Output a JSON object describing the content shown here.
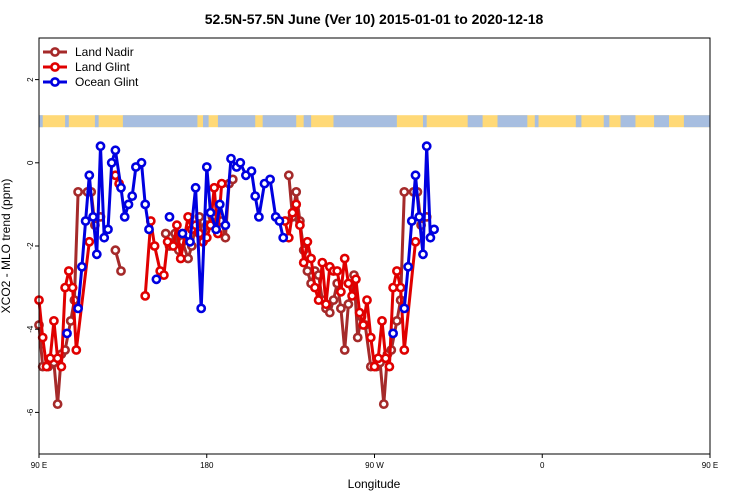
{
  "chart_data": {
    "type": "line",
    "title": "52.5N-57.5N June (Ver 10)   2015-01-01 to 2020-12-18",
    "xlabel": "Longitude",
    "ylabel": "XCO2 - MLO trend (ppm)",
    "xlim": [
      90,
      450
    ],
    "ylim": [
      -7,
      3
    ],
    "x_ticks": [
      {
        "value": 90,
        "label": "90 E"
      },
      {
        "value": 180,
        "label": "180"
      },
      {
        "value": 270,
        "label": "90 W"
      },
      {
        "value": 360,
        "label": "0"
      },
      {
        "value": 450,
        "label": "90 E"
      },
      {
        "value": 540,
        "label": "180"
      }
    ],
    "y_ticks": [
      -6,
      -4,
      -2,
      0,
      2
    ],
    "legend_position": "top-left",
    "land_strip": {
      "y_center": 1.0,
      "land_color": "#FFD977",
      "ocean_color": "#A7BEE0"
    },
    "series": [
      {
        "name": "Land Nadir",
        "color": "#A52A2A",
        "segments": [
          [
            [
              90,
              -3.9
            ],
            [
              92,
              -4.9
            ],
            [
              95,
              -4.9
            ],
            [
              98,
              -4.8
            ],
            [
              100,
              -5.8
            ],
            [
              102,
              -4.6
            ],
            [
              104,
              -4.5
            ],
            [
              107,
              -3.8
            ],
            [
              109,
              -3.3
            ],
            [
              111,
              -0.7
            ],
            [
              116,
              -0.7
            ],
            [
              118,
              -0.7
            ],
            [
              120,
              -1.5
            ],
            [
              123,
              -1.3
            ]
          ],
          [
            [
              131,
              -2.1
            ],
            [
              134,
              -2.6
            ]
          ],
          [
            [
              158,
              -1.7
            ],
            [
              160,
              -2.0
            ],
            [
              163,
              -1.7
            ],
            [
              165,
              -2.1
            ],
            [
              167,
              -1.9
            ],
            [
              170,
              -2.3
            ],
            [
              172,
              -2.0
            ],
            [
              174,
              -1.5
            ],
            [
              176,
              -1.3
            ],
            [
              178,
              -1.9
            ],
            [
              180,
              -1.5
            ],
            [
              183,
              -1.3
            ],
            [
              185,
              -1.5
            ],
            [
              188,
              -1.4
            ],
            [
              190,
              -1.8
            ],
            [
              192,
              -0.5
            ],
            [
              194,
              -0.4
            ]
          ],
          [
            [
              224,
              -0.3
            ],
            [
              226,
              -1.3
            ],
            [
              228,
              -0.7
            ],
            [
              230,
              -1.4
            ],
            [
              232,
              -2.1
            ],
            [
              234,
              -2.6
            ],
            [
              236,
              -2.9
            ],
            [
              238,
              -2.6
            ],
            [
              240,
              -2.7
            ],
            [
              242,
              -3.3
            ],
            [
              244,
              -3.5
            ],
            [
              246,
              -3.6
            ],
            [
              248,
              -3.3
            ],
            [
              250,
              -2.9
            ],
            [
              252,
              -3.5
            ],
            [
              254,
              -4.5
            ],
            [
              256,
              -3.4
            ],
            [
              259,
              -2.7
            ],
            [
              261,
              -4.2
            ],
            [
              263,
              -3.7
            ],
            [
              265,
              -3.9
            ],
            [
              268,
              -4.9
            ],
            [
              271,
              -4.9
            ],
            [
              273,
              -4.8
            ],
            [
              275,
              -5.8
            ],
            [
              277,
              -4.6
            ],
            [
              279,
              -4.5
            ],
            [
              282,
              -3.8
            ],
            [
              284,
              -3.3
            ],
            [
              286,
              -0.7
            ],
            [
              291,
              -0.7
            ],
            [
              293,
              -0.7
            ],
            [
              295,
              -1.5
            ],
            [
              298,
              -1.3
            ]
          ]
        ]
      },
      {
        "name": "Land Glint",
        "color": "#E00000",
        "segments": [
          [
            [
              90,
              -3.3
            ],
            [
              92,
              -4.2
            ],
            [
              94,
              -4.9
            ],
            [
              96,
              -4.7
            ],
            [
              98,
              -3.8
            ],
            [
              100,
              -4.7
            ],
            [
              102,
              -4.9
            ],
            [
              104,
              -3.0
            ],
            [
              106,
              -2.6
            ],
            [
              108,
              -3.0
            ],
            [
              110,
              -4.5
            ],
            [
              117,
              -1.9
            ]
          ],
          [
            [
              131,
              -0.3
            ],
            [
              133,
              -0.5
            ]
          ],
          [
            [
              147,
              -3.2
            ],
            [
              150,
              -1.4
            ],
            [
              152,
              -2.0
            ],
            [
              155,
              -2.6
            ],
            [
              157,
              -2.7
            ],
            [
              159,
              -1.9
            ],
            [
              162,
              -2.0
            ],
            [
              164,
              -1.5
            ],
            [
              166,
              -2.3
            ],
            [
              170,
              -1.3
            ],
            [
              172,
              -1.6
            ],
            [
              174,
              -1.5
            ],
            [
              176,
              -1.7
            ],
            [
              178,
              -1.9
            ],
            [
              180,
              -1.8
            ],
            [
              182,
              -1.5
            ],
            [
              184,
              -0.6
            ],
            [
              186,
              -1.7
            ],
            [
              188,
              -0.5
            ]
          ],
          [
            [
              222,
              -1.4
            ],
            [
              224,
              -1.8
            ],
            [
              226,
              -1.2
            ],
            [
              228,
              -1.0
            ],
            [
              230,
              -1.5
            ],
            [
              232,
              -2.4
            ],
            [
              234,
              -1.9
            ],
            [
              236,
              -2.3
            ],
            [
              238,
              -3.0
            ],
            [
              240,
              -3.3
            ],
            [
              242,
              -2.4
            ],
            [
              244,
              -3.4
            ],
            [
              246,
              -2.5
            ],
            [
              248,
              -2.6
            ],
            [
              250,
              -2.6
            ],
            [
              252,
              -3.1
            ],
            [
              254,
              -2.3
            ],
            [
              256,
              -2.9
            ],
            [
              258,
              -3.2
            ],
            [
              260,
              -2.8
            ],
            [
              262,
              -3.6
            ],
            [
              264,
              -3.9
            ],
            [
              266,
              -3.3
            ],
            [
              268,
              -4.2
            ],
            [
              270,
              -4.9
            ],
            [
              272,
              -4.7
            ],
            [
              274,
              -3.8
            ],
            [
              276,
              -4.7
            ],
            [
              278,
              -4.9
            ],
            [
              280,
              -3.0
            ],
            [
              282,
              -2.6
            ],
            [
              284,
              -3.0
            ],
            [
              286,
              -4.5
            ],
            [
              292,
              -1.9
            ]
          ]
        ]
      },
      {
        "name": "Ocean Glint",
        "color": "#0000E0",
        "segments": [
          [
            [
              105,
              -4.1
            ]
          ],
          [
            [
              111,
              -3.5
            ],
            [
              113,
              -2.5
            ],
            [
              115,
              -1.4
            ],
            [
              117,
              -0.3
            ],
            [
              119,
              -1.3
            ],
            [
              121,
              -2.2
            ],
            [
              123,
              0.4
            ],
            [
              125,
              -1.8
            ],
            [
              127,
              -1.6
            ],
            [
              129,
              0.0
            ],
            [
              131,
              0.3
            ],
            [
              134,
              -0.6
            ],
            [
              136,
              -1.3
            ],
            [
              138,
              -1.0
            ],
            [
              140,
              -0.8
            ],
            [
              142,
              -0.1
            ],
            [
              145,
              0.0
            ],
            [
              147,
              -1.0
            ],
            [
              149,
              -1.6
            ]
          ],
          [
            [
              153,
              -2.8
            ]
          ],
          [
            [
              160,
              -1.3
            ]
          ],
          [
            [
              167,
              -1.7
            ],
            [
              171,
              -1.9
            ],
            [
              174,
              -0.6
            ],
            [
              177,
              -3.5
            ],
            [
              180,
              -0.1
            ],
            [
              182,
              -1.2
            ],
            [
              185,
              -1.6
            ],
            [
              187,
              -1.0
            ],
            [
              190,
              -1.5
            ],
            [
              193,
              0.1
            ],
            [
              196,
              -0.1
            ],
            [
              198,
              0.0
            ],
            [
              201,
              -0.3
            ],
            [
              204,
              -0.2
            ],
            [
              206,
              -0.8
            ],
            [
              208,
              -1.3
            ],
            [
              211,
              -0.5
            ],
            [
              214,
              -0.4
            ],
            [
              217,
              -1.3
            ],
            [
              219,
              -1.4
            ],
            [
              221,
              -1.8
            ]
          ],
          [
            [
              280,
              -4.1
            ]
          ],
          [
            [
              286,
              -3.5
            ],
            [
              288,
              -2.5
            ],
            [
              290,
              -1.4
            ],
            [
              292,
              -0.3
            ],
            [
              294,
              -1.3
            ],
            [
              296,
              -2.2
            ],
            [
              298,
              0.4
            ],
            [
              300,
              -1.8
            ],
            [
              302,
              -1.6
            ]
          ]
        ]
      }
    ]
  }
}
